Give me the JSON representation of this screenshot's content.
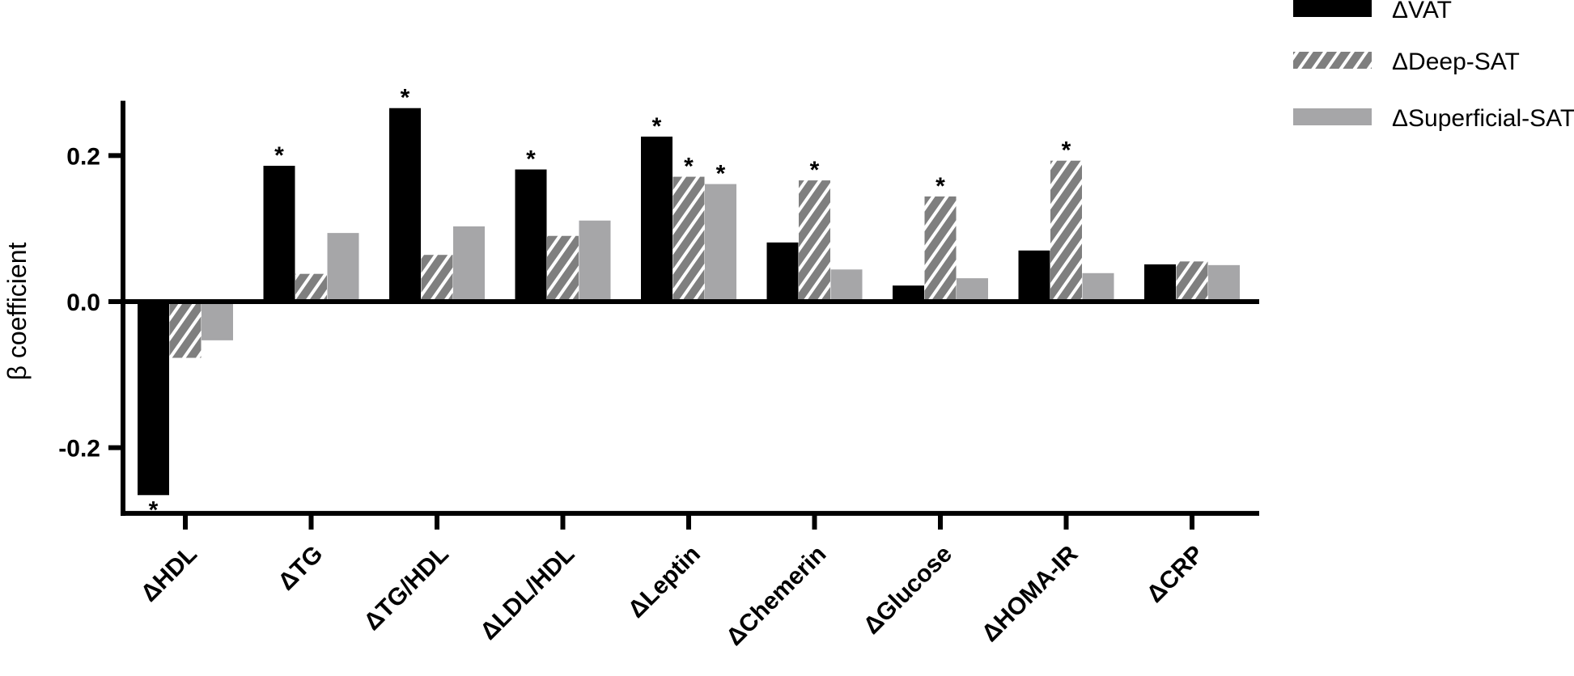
{
  "chart_data": {
    "type": "bar",
    "ylabel": "β coefficient",
    "xlabel": "",
    "ylim": [
      -0.29,
      0.275
    ],
    "yticks": [
      -0.2,
      0.0,
      0.2
    ],
    "ytick_labels": [
      "-0.2",
      "0.0",
      "0.2"
    ],
    "categories": [
      "ΔHDL",
      "ΔTG",
      "ΔTG/HDL",
      "ΔLDL/HDL",
      "ΔLeptin",
      "ΔChemerin",
      "ΔGlucose",
      "ΔHOMA-IR",
      "ΔCRP"
    ],
    "significance_marker": "*",
    "legend_position": "top-right",
    "grid": false,
    "series": [
      {
        "name": "ΔVAT",
        "style": "solid",
        "color": "#000000",
        "values": [
          -0.265,
          0.186,
          0.265,
          0.181,
          0.226,
          0.081,
          0.022,
          0.07,
          0.051
        ],
        "significant": [
          true,
          true,
          true,
          true,
          true,
          false,
          false,
          false,
          false
        ]
      },
      {
        "name": "ΔDeep-SAT",
        "style": "hatched",
        "color": "#7f7f7f",
        "values": [
          -0.077,
          0.038,
          0.064,
          0.09,
          0.171,
          0.166,
          0.144,
          0.193,
          0.055
        ],
        "significant": [
          false,
          false,
          false,
          false,
          true,
          true,
          true,
          true,
          false
        ]
      },
      {
        "name": "ΔSuperficial-SAT",
        "style": "solid",
        "color": "#a6a6a8",
        "values": [
          -0.053,
          0.094,
          0.103,
          0.111,
          0.161,
          0.044,
          0.032,
          0.039,
          0.05
        ],
        "significant": [
          false,
          false,
          false,
          false,
          true,
          false,
          false,
          false,
          false
        ]
      }
    ]
  }
}
